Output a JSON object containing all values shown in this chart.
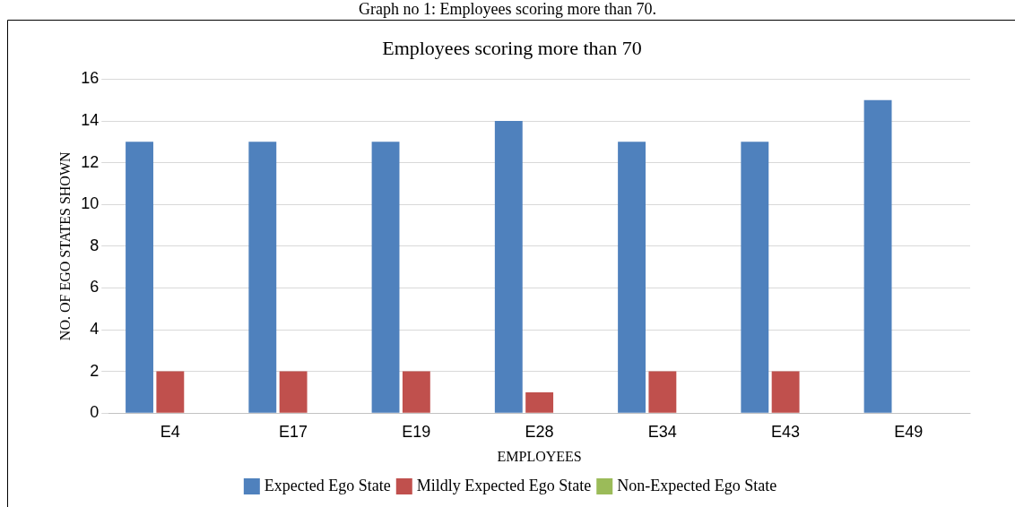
{
  "chart_data": {
    "type": "bar",
    "title": "Employees scoring more than 70",
    "xlabel": "EMPLOYEES",
    "ylabel": "NO. OF EGO STATES SHOWN",
    "annotations": [
      "Graph no 1: Employees scoring more than 70."
    ],
    "categories": [
      "E4",
      "E17",
      "E19",
      "E28",
      "E34",
      "E43",
      "E49"
    ],
    "series": [
      {
        "name": "Expected Ego State",
        "color": "#4f81bd",
        "values": [
          13,
          13,
          13,
          14,
          13,
          13,
          15
        ]
      },
      {
        "name": "Mildly Expected Ego State",
        "color": "#c0504d",
        "values": [
          2,
          2,
          2,
          1,
          2,
          2,
          0
        ]
      },
      {
        "name": "Non-Expected Ego State",
        "color": "#9bbb59",
        "values": [
          0,
          0,
          0,
          0,
          0,
          0,
          0
        ]
      }
    ],
    "ylim": [
      0,
      16
    ],
    "yticks": [
      0,
      2,
      4,
      6,
      8,
      10,
      12,
      14,
      16
    ],
    "grid": "y",
    "legend": "bottom"
  }
}
